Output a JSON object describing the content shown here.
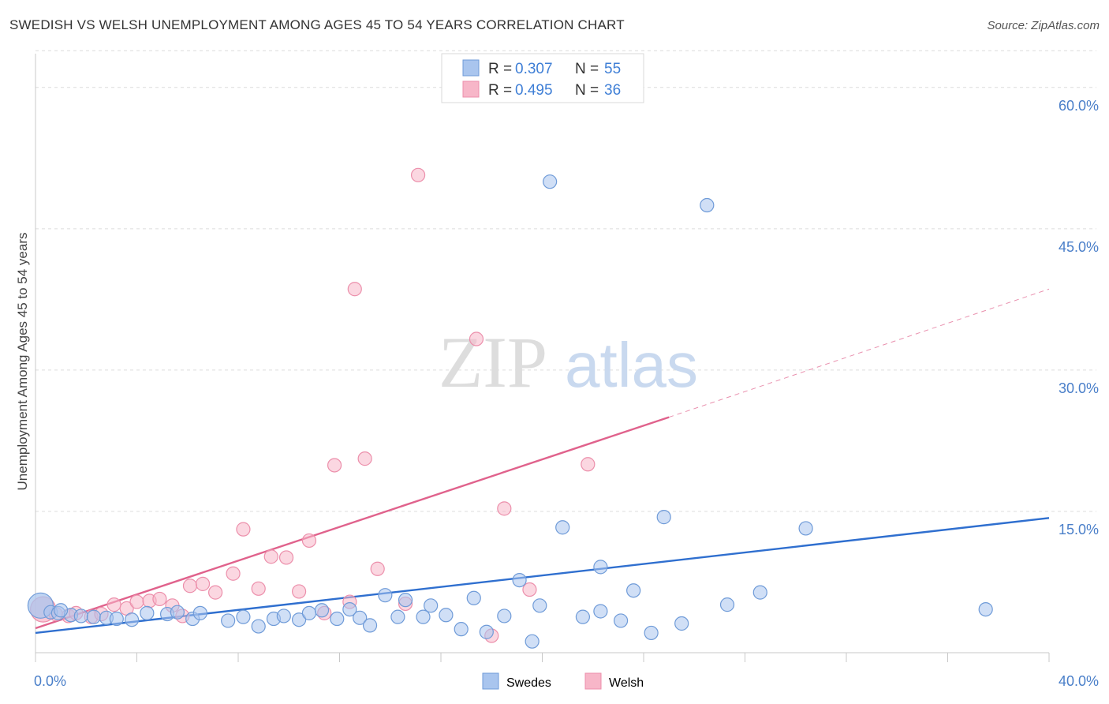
{
  "title": "SWEDISH VS WELSH UNEMPLOYMENT AMONG AGES 45 TO 54 YEARS CORRELATION CHART",
  "source": "Source: ZipAtlas.com",
  "watermark": {
    "zip": "ZIP",
    "atlas": "atlas"
  },
  "legend": {
    "r_label": "R =",
    "n_label": "N =",
    "entries": [
      {
        "r": "0.307",
        "n": "55",
        "color": "#a9c5ee"
      },
      {
        "r": "0.495",
        "n": "36",
        "color": "#f7b6c8"
      }
    ]
  },
  "chart_data": {
    "type": "scatter",
    "title": "SWEDISH VS WELSH UNEMPLOYMENT AMONG AGES 45 TO 54 YEARS CORRELATION CHART",
    "xlabel": "",
    "ylabel": "Unemployment Among Ages 45 to 54 years",
    "xlim": [
      0,
      40
    ],
    "ylim": [
      0,
      63
    ],
    "x_tick_labels": [
      "0.0%",
      "40.0%"
    ],
    "y_ticks": [
      15,
      30,
      45,
      60
    ],
    "y_tick_labels": [
      "15.0%",
      "30.0%",
      "45.0%",
      "60.0%"
    ],
    "grid": "horizontal dashed",
    "legend_position": "top-center",
    "series": [
      {
        "name": "Swedes",
        "color": "#a9c5ee",
        "edge": "#6f9bd8",
        "line_color": "#2f6fcf",
        "trend": {
          "x0": 0,
          "y0": 2.1,
          "x1": 40,
          "y1": 14.3
        },
        "points": [
          [
            0.2,
            5.0
          ],
          [
            0.6,
            4.3
          ],
          [
            0.9,
            4.2
          ],
          [
            1.4,
            4.0
          ],
          [
            1.8,
            3.9
          ],
          [
            2.3,
            3.8
          ],
          [
            2.8,
            3.7
          ],
          [
            3.2,
            3.6
          ],
          [
            3.8,
            3.5
          ],
          [
            4.4,
            4.2
          ],
          [
            5.2,
            4.1
          ],
          [
            6.2,
            3.6
          ],
          [
            6.5,
            4.2
          ],
          [
            7.6,
            3.4
          ],
          [
            8.2,
            3.8
          ],
          [
            8.8,
            2.8
          ],
          [
            9.4,
            3.6
          ],
          [
            9.8,
            3.9
          ],
          [
            10.4,
            3.5
          ],
          [
            10.8,
            4.2
          ],
          [
            11.3,
            4.5
          ],
          [
            11.9,
            3.6
          ],
          [
            12.4,
            4.6
          ],
          [
            12.8,
            3.7
          ],
          [
            13.2,
            2.9
          ],
          [
            13.8,
            6.1
          ],
          [
            14.3,
            3.8
          ],
          [
            14.6,
            5.6
          ],
          [
            15.3,
            3.8
          ],
          [
            15.6,
            5.0
          ],
          [
            16.2,
            4.0
          ],
          [
            16.8,
            2.5
          ],
          [
            17.3,
            5.8
          ],
          [
            17.8,
            2.2
          ],
          [
            18.5,
            3.9
          ],
          [
            19.1,
            7.7
          ],
          [
            19.6,
            1.2
          ],
          [
            19.9,
            5.0
          ],
          [
            20.3,
            50.0
          ],
          [
            20.8,
            13.3
          ],
          [
            21.6,
            3.8
          ],
          [
            22.3,
            9.1
          ],
          [
            22.3,
            4.4
          ],
          [
            23.1,
            3.4
          ],
          [
            23.6,
            6.6
          ],
          [
            24.3,
            2.1
          ],
          [
            24.8,
            14.4
          ],
          [
            25.5,
            3.1
          ],
          [
            26.5,
            47.5
          ],
          [
            27.3,
            5.1
          ],
          [
            28.6,
            6.4
          ],
          [
            30.4,
            13.2
          ],
          [
            37.5,
            4.6
          ],
          [
            1.0,
            4.5
          ],
          [
            5.6,
            4.3
          ]
        ]
      },
      {
        "name": "Welsh",
        "color": "#f7b6c8",
        "edge": "#ec8fab",
        "line_color": "#e0628c",
        "trend": {
          "x0": 0,
          "y0": 2.6,
          "x1": 25.0,
          "y1": 25.0
        },
        "trend_dashed": {
          "x0": 25.0,
          "y0": 25.0,
          "x1": 40,
          "y1": 38.6
        },
        "points": [
          [
            0.3,
            4.6
          ],
          [
            0.8,
            4.1
          ],
          [
            1.3,
            3.9
          ],
          [
            1.6,
            4.2
          ],
          [
            2.2,
            3.8
          ],
          [
            2.6,
            4.1
          ],
          [
            3.1,
            5.1
          ],
          [
            3.6,
            4.7
          ],
          [
            4.0,
            5.4
          ],
          [
            4.5,
            5.5
          ],
          [
            4.9,
            5.7
          ],
          [
            5.4,
            5.0
          ],
          [
            5.8,
            3.9
          ],
          [
            6.1,
            7.1
          ],
          [
            6.6,
            7.3
          ],
          [
            7.1,
            6.4
          ],
          [
            7.8,
            8.4
          ],
          [
            8.2,
            13.1
          ],
          [
            8.8,
            6.8
          ],
          [
            9.3,
            10.2
          ],
          [
            9.9,
            10.1
          ],
          [
            10.4,
            6.5
          ],
          [
            10.8,
            11.9
          ],
          [
            11.4,
            4.2
          ],
          [
            11.8,
            19.9
          ],
          [
            12.4,
            5.4
          ],
          [
            12.6,
            38.6
          ],
          [
            13.0,
            20.6
          ],
          [
            13.5,
            8.9
          ],
          [
            14.6,
            5.2
          ],
          [
            15.1,
            50.7
          ],
          [
            17.4,
            33.3
          ],
          [
            18.0,
            1.8
          ],
          [
            18.5,
            15.3
          ],
          [
            19.5,
            6.7
          ],
          [
            21.8,
            20.0
          ]
        ]
      }
    ]
  }
}
